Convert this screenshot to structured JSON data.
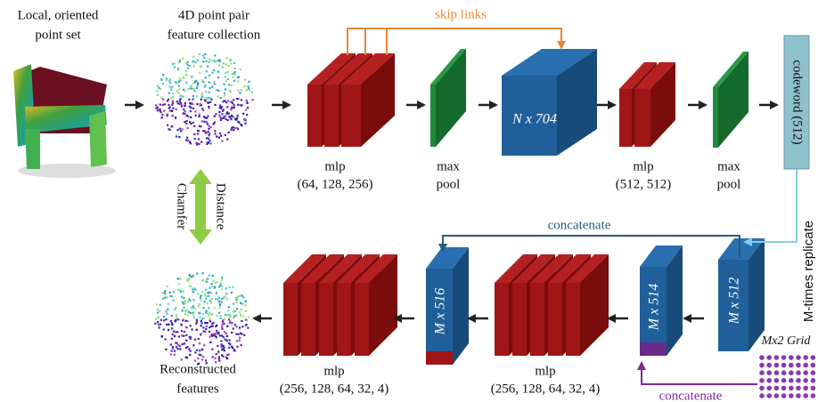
{
  "nodes": [
    {
      "label": [
        "Local, oriented",
        "point set"
      ]
    },
    {
      "label": [
        "4D point pair",
        "feature collection"
      ]
    },
    {
      "label": [
        "mlp",
        "(64, 128, 256)"
      ]
    },
    {
      "label": [
        "max",
        "pool"
      ]
    },
    {
      "label": "N x 704"
    },
    {
      "label": [
        "mlp",
        "(512, 512)"
      ]
    },
    {
      "label": [
        "max",
        "pool"
      ]
    },
    {
      "label": "codeword (512)"
    },
    {
      "label": "M x 512"
    },
    {
      "label": "M x 514"
    },
    {
      "label": [
        "mlp",
        "(256, 128, 64, 32, 4)"
      ]
    },
    {
      "label": "M x 516"
    },
    {
      "label": [
        "mlp",
        "(256, 128, 64, 32, 4)"
      ]
    },
    {
      "label": [
        "Reconstructed",
        "features"
      ]
    },
    {
      "label": "Mx2 Grid"
    }
  ],
  "edges": [
    {
      "label": "skip links"
    },
    {
      "label": "M-times replicate"
    },
    {
      "label": "concatenate"
    },
    {
      "label": "concatenate"
    },
    {
      "label": [
        "Chamfer",
        "Distance"
      ]
    }
  ]
}
